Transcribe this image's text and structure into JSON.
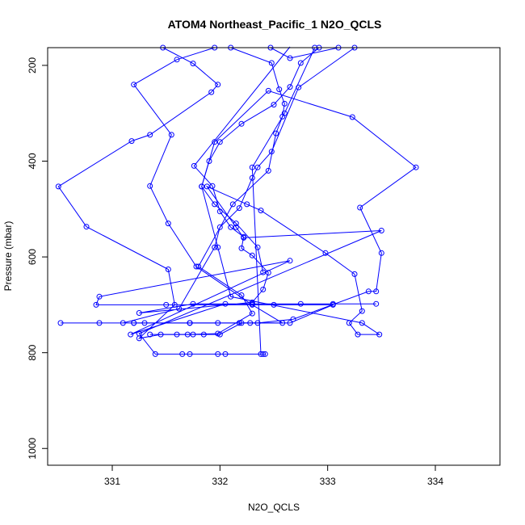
{
  "chart_data": {
    "type": "line",
    "title": "ATOM4 Northeast_Pacific_1 N2O_QCLS",
    "xlabel": "N2O_QCLS",
    "ylabel": "Pressure (mbar)",
    "xlim": [
      330.4,
      334.6
    ],
    "ylim": [
      1035,
      163
    ],
    "y_reversed": true,
    "x_ticks": [
      331,
      332,
      333,
      334
    ],
    "y_ticks": [
      200,
      400,
      600,
      800,
      1000
    ],
    "grid": false,
    "legend": "none",
    "color": "#0000ff",
    "marker": "open-circle",
    "series": [
      {
        "points": [
          [
            332.47,
            163
          ],
          [
            332.65,
            185
          ],
          [
            333.1,
            163
          ],
          [
            333.25,
            163
          ],
          [
            332.73,
            246
          ],
          [
            332.48,
            380
          ],
          [
            332.35,
            413
          ],
          [
            332.3,
            435
          ],
          [
            332.18,
            498
          ],
          [
            332.0,
            538
          ],
          [
            331.95,
            580
          ],
          [
            331.62,
            708
          ],
          [
            331.1,
            738
          ],
          [
            330.52,
            738
          ],
          [
            330.88,
            738
          ],
          [
            331.2,
            738
          ],
          [
            331.3,
            738
          ],
          [
            331.72,
            738
          ],
          [
            331.72,
            738
          ],
          [
            331.98,
            738
          ],
          [
            332.18,
            738
          ],
          [
            332.28,
            738
          ],
          [
            332.65,
            738
          ],
          [
            333.05,
            700
          ],
          [
            332.5,
            700
          ],
          [
            331.5,
            700
          ],
          [
            330.85,
            700
          ],
          [
            330.88,
            683
          ],
          [
            332.65,
            608
          ],
          [
            331.17,
            762
          ],
          [
            332.05,
            698
          ],
          [
            333.05,
            698
          ],
          [
            333.45,
            698
          ],
          [
            332.75,
            698
          ],
          [
            332.3,
            698
          ],
          [
            331.75,
            698
          ],
          [
            331.25,
            717
          ],
          [
            332.3,
            695
          ],
          [
            332.4,
            668
          ],
          [
            332.45,
            633
          ],
          [
            332.3,
            597
          ],
          [
            332.2,
            582
          ],
          [
            332.22,
            558
          ],
          [
            332.1,
            538
          ],
          [
            332.0,
            505
          ],
          [
            331.93,
            452
          ],
          [
            331.76,
            410
          ],
          [
            332.65,
            160
          ]
        ]
      },
      {
        "points": [
          [
            331.47,
            163
          ],
          [
            331.75,
            196
          ],
          [
            331.98,
            240
          ],
          [
            331.92,
            256
          ],
          [
            331.35,
            345
          ],
          [
            331.18,
            358
          ],
          [
            330.5,
            453
          ],
          [
            330.76,
            537
          ],
          [
            331.52,
            626
          ],
          [
            331.58,
            700
          ],
          [
            331.25,
            770
          ],
          [
            331.45,
            762
          ],
          [
            331.75,
            762
          ],
          [
            331.85,
            762
          ],
          [
            332.0,
            762
          ],
          [
            332.2,
            738
          ],
          [
            332.35,
            738
          ],
          [
            332.68,
            730
          ],
          [
            333.38,
            672
          ],
          [
            333.45,
            672
          ],
          [
            333.5,
            592
          ],
          [
            333.3,
            497
          ],
          [
            333.82,
            413
          ],
          [
            333.23,
            308
          ],
          [
            332.45,
            253
          ],
          [
            331.95,
            360
          ],
          [
            331.83,
            453
          ],
          [
            331.98,
            580
          ],
          [
            332.1,
            683
          ],
          [
            333.32,
            738
          ],
          [
            333.48,
            762
          ],
          [
            333.28,
            762
          ],
          [
            333.2,
            738
          ],
          [
            333.32,
            713
          ],
          [
            333.25,
            636
          ],
          [
            332.98,
            592
          ],
          [
            332.38,
            503
          ],
          [
            332.25,
            490
          ],
          [
            331.88,
            453
          ],
          [
            332.15,
            538
          ],
          [
            332.22,
            560
          ],
          [
            333.5,
            545
          ],
          [
            331.25,
            760
          ],
          [
            331.4,
            803
          ],
          [
            331.65,
            803
          ],
          [
            331.72,
            803
          ],
          [
            331.98,
            803
          ],
          [
            332.05,
            803
          ],
          [
            332.4,
            803
          ],
          [
            332.42,
            803
          ],
          [
            332.38,
            803
          ],
          [
            332.3,
            413
          ],
          [
            332.6,
            300
          ],
          [
            332.88,
            163
          ]
        ]
      },
      {
        "points": [
          [
            332.1,
            163
          ],
          [
            332.48,
            195
          ],
          [
            332.55,
            250
          ],
          [
            332.6,
            280
          ],
          [
            332.58,
            307
          ],
          [
            332.52,
            342
          ],
          [
            332.45,
            420
          ],
          [
            332.12,
            490
          ],
          [
            331.8,
            620
          ],
          [
            332.2,
            680
          ],
          [
            332.3,
            718
          ],
          [
            331.98,
            760
          ],
          [
            331.7,
            762
          ],
          [
            331.6,
            762
          ],
          [
            331.35,
            762
          ]
        ]
      },
      {
        "points": [
          [
            331.95,
            163
          ],
          [
            331.6,
            188
          ],
          [
            331.2,
            240
          ],
          [
            331.55,
            345
          ],
          [
            331.35,
            452
          ],
          [
            331.52,
            530
          ],
          [
            331.78,
            620
          ],
          [
            332.3,
            700
          ],
          [
            332.58,
            738
          ],
          [
            331.72,
            738
          ],
          [
            331.2,
            738
          ]
        ]
      },
      {
        "points": [
          [
            332.92,
            163
          ],
          [
            332.75,
            195
          ],
          [
            332.65,
            245
          ],
          [
            332.5,
            282
          ],
          [
            332.2,
            322
          ],
          [
            332.0,
            360
          ],
          [
            331.9,
            400
          ],
          [
            331.83,
            453
          ],
          [
            331.95,
            490
          ],
          [
            332.15,
            530
          ],
          [
            332.35,
            580
          ],
          [
            332.4,
            632
          ]
        ]
      }
    ]
  }
}
